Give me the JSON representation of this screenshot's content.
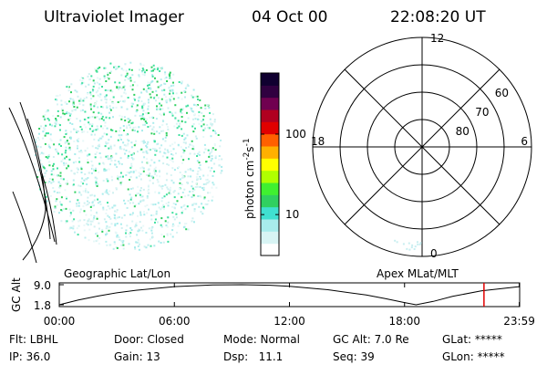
{
  "header": {
    "title": "Ultraviolet Imager",
    "date": "04 Oct 00",
    "time": "22:08:20 UT"
  },
  "colorbar": {
    "log": true,
    "range": [
      3.1,
      575
    ],
    "ticks": [
      10,
      100
    ],
    "colors": [
      "#ffffff",
      "#d8f4f4",
      "#a8ecec",
      "#40e0d0",
      "#30d060",
      "#40f030",
      "#b0ff00",
      "#ffff00",
      "#ffb000",
      "#ff6000",
      "#e00000",
      "#b00020",
      "#700050",
      "#300040",
      "#100030"
    ],
    "label": "photon cm",
    "label_sup1": "-2",
    "label_mid": "s",
    "label_sup2": "-1"
  },
  "polar": {
    "lat_limit": 50,
    "lat_rings": [
      60,
      70,
      80
    ],
    "mlt_labels": [
      12,
      18,
      6,
      0
    ]
  },
  "altitude_plot": {
    "left_label": "Geographic Lat/Lon",
    "right_label": "Apex MLat/MLT",
    "ylabel": "GC Alt",
    "xlim": [
      0,
      24
    ],
    "ylim": [
      1.8,
      9
    ],
    "yticks": [
      {
        "value": 9,
        "label": "9.0"
      },
      1.8
    ],
    "xticks": [
      {
        "value": 0,
        "label": "00:00"
      },
      {
        "value": 6,
        "label": "06:00"
      },
      {
        "value": 12,
        "label": "12:00"
      },
      {
        "value": 18,
        "label": "18:00"
      },
      {
        "value": 23.98,
        "label": "23:59"
      }
    ],
    "x": [
      0,
      1,
      2,
      3,
      4,
      6,
      8,
      9.5,
      11,
      12,
      14,
      16,
      17,
      18,
      18.6,
      19.5,
      20.5,
      22,
      23.98
    ],
    "values": [
      1.8,
      3.5,
      4.9,
      6.1,
      7.0,
      8.3,
      8.9,
      9.0,
      8.8,
      8.4,
      7.2,
      5.3,
      4.0,
      2.6,
      1.8,
      3.0,
      4.8,
      6.8,
      8.3
    ],
    "color": "#000000",
    "marker_x": 22.14,
    "marker_color": "#e00000"
  },
  "info": {
    "rows": [
      [
        "Flt: LBHL",
        "Door: Closed",
        "Mode: Normal",
        "GC Alt: 7.0 Re",
        "GLat: *****"
      ],
      [
        "IP: 36.0",
        "Gain: 13",
        "Dsp:   11.1",
        "Seq: 39",
        "GLon: *****"
      ]
    ]
  }
}
